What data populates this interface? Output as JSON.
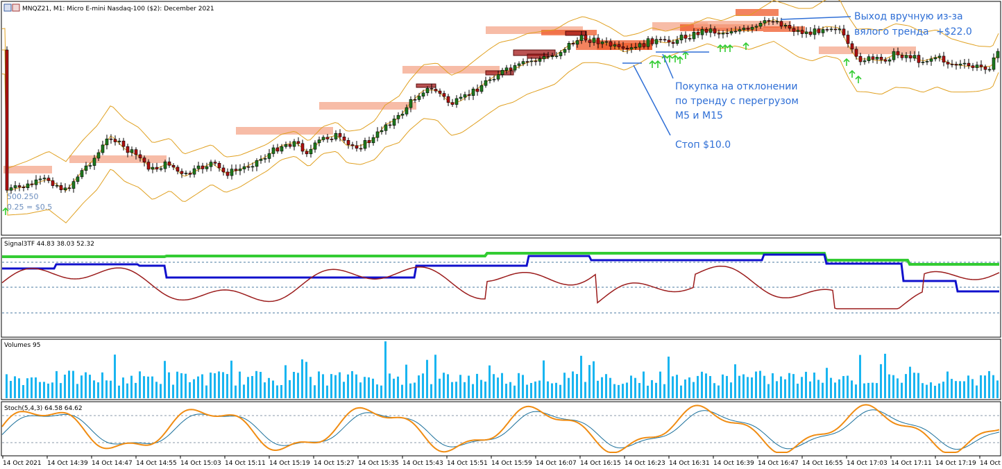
{
  "chart_data": {
    "type": "candlestick",
    "instrument": "MNQZ21",
    "timeframe": "M1",
    "header_title": "MNQZ21, M1:  Micro E-mini Nasdaq-100 ($2): December 2021",
    "annotations": {
      "exit_line1": "Выход вручную из-за",
      "exit_line2": "вялого тренда",
      "exit_profit": "+$22.0",
      "entry_line1": "Покупка на отклонении",
      "entry_line2": "по тренду с перегрузом",
      "entry_line3": "M5 и M15",
      "stop": "Стоп $10.0",
      "ghost_line1": "500.250",
      "ghost_line2": "0.25 = $0.5"
    },
    "signal_panel": {
      "title": "Signal3TF 44.83 38.03 52.32",
      "values": [
        44.83,
        38.03,
        52.32
      ],
      "green_series": [
        95,
        95,
        95,
        95,
        95,
        95,
        95,
        95,
        95,
        95,
        95,
        95,
        95,
        95,
        95,
        95,
        95,
        95,
        95,
        95,
        95,
        95,
        95,
        95,
        95,
        95,
        95,
        95,
        95,
        95,
        95,
        95,
        95,
        95,
        95,
        95,
        95,
        96,
        96,
        96,
        96,
        96,
        96,
        96,
        96,
        96,
        96,
        96,
        96,
        96,
        96,
        96,
        96,
        96,
        96,
        96,
        96,
        96,
        96,
        96,
        96,
        97,
        97,
        97,
        97,
        97,
        97,
        97,
        97,
        97,
        97,
        97,
        97,
        97,
        97,
        97,
        97,
        97,
        97,
        97,
        97,
        97,
        97,
        97,
        97,
        97,
        97,
        97,
        97,
        97,
        97,
        97,
        97,
        97,
        97,
        97,
        97,
        97,
        97,
        97,
        97,
        97,
        97,
        97,
        97,
        97,
        97,
        97,
        97,
        97,
        97,
        97,
        97,
        97,
        97,
        97,
        97,
        97,
        97,
        97,
        97,
        97,
        97,
        97,
        97,
        97,
        97,
        97,
        97,
        97,
        97,
        97,
        97,
        97,
        97,
        97,
        97,
        97,
        97,
        97,
        97,
        97,
        97,
        97,
        97,
        97,
        97,
        97,
        97,
        97,
        97,
        97,
        97,
        97,
        97,
        97,
        97,
        97,
        97,
        97,
        97,
        97,
        97,
        97,
        97,
        97,
        97,
        97,
        97,
        97,
        97,
        97,
        97,
        97,
        97,
        97,
        97,
        97,
        97,
        97,
        97,
        97,
        97,
        97,
        97,
        97,
        97,
        97,
        97,
        97,
        97,
        97,
        97,
        97,
        97,
        97,
        97,
        97,
        97,
        97,
        97,
        97,
        97,
        97,
        97,
        97,
        97,
        97,
        97,
        97,
        97,
        97,
        98,
        98,
        98,
        98,
        98,
        98,
        98,
        98,
        98,
        98,
        98,
        98,
        98,
        98,
        98,
        98,
        98,
        98,
        98,
        98,
        98,
        98,
        98,
        98,
        98,
        98,
        98,
        98,
        98,
        98,
        98,
        98,
        98,
        98,
        98,
        98,
        98,
        98,
        98,
        98,
        98,
        98,
        98,
        98,
        98,
        98,
        98,
        98,
        98,
        98,
        98,
        98,
        98,
        98,
        98,
        98,
        98,
        98,
        98,
        98,
        98,
        98,
        98,
        98,
        98,
        98,
        98,
        98,
        98,
        98,
        98,
        98,
        98,
        98,
        98,
        98,
        98,
        98,
        98,
        98,
        98,
        98,
        98,
        98,
        98,
        98,
        98,
        98,
        98,
        98,
        98,
        98,
        98,
        98,
        90,
        90,
        90,
        90,
        90,
        90,
        90,
        90,
        90,
        90,
        90,
        90,
        90,
        90,
        90,
        90,
        90,
        90,
        90,
        90,
        90,
        90,
        90,
        90,
        90,
        90,
        90,
        90,
        90,
        90,
        90,
        90,
        90,
        90,
        90,
        90,
        90,
        90,
        90,
        90,
        90,
        90,
        90,
        90,
        90,
        90,
        90,
        90,
        90,
        90,
        90,
        90,
        90,
        90,
        90,
        90,
        90,
        90,
        90,
        90,
        90,
        90,
        90,
        90,
        90,
        90,
        90,
        90,
        90,
        90,
        90,
        90,
        90,
        90,
        90,
        90,
        90,
        90,
        90,
        90,
        90,
        90,
        90,
        90,
        90,
        90,
        90,
        90,
        90,
        90,
        90,
        90,
        90,
        90,
        90,
        90,
        90,
        90,
        90,
        90,
        90,
        90,
        90,
        90,
        90,
        90,
        90,
        90,
        90,
        90,
        90,
        90,
        90,
        90,
        90,
        90
      ],
      "green_y": 52.32,
      "blue_y": 44.83,
      "red_y": 38.03
    },
    "volumes_panel": {
      "title": "Volumes 95",
      "value": 95
    },
    "stoch_panel": {
      "title": "Stoch(5,4,3) 64.58 64.62",
      "k": 64.58,
      "d": 64.62
    },
    "x_ticks": [
      "14 Oct 2021",
      "14 Oct 14:39",
      "14 Oct 14:47",
      "14 Oct 14:55",
      "14 Oct 15:03",
      "14 Oct 15:11",
      "14 Oct 15:19",
      "14 Oct 15:27",
      "14 Oct 15:35",
      "14 Oct 15:43",
      "14 Oct 15:51",
      "14 Oct 15:59",
      "14 Oct 16:07",
      "14 Oct 16:15",
      "14 Oct 16:23",
      "14 Oct 16:31",
      "14 Oct 16:39",
      "14 Oct 16:47",
      "14 Oct 16:55",
      "14 Oct 17:03",
      "14 Oct 17:11",
      "14 Oct 17:19",
      "14 Oct"
    ],
    "colors": {
      "bull": "#1e7a1e",
      "bear": "#b01010",
      "band": "#e0a020",
      "zone": "#f4a58a",
      "zone_strong": "#ef5a2a",
      "zone_dark": "#a31818",
      "green_line": "#33cc33",
      "blue_line": "#1010cc",
      "red_line": "#9b1c1c",
      "volume": "#19b5f0",
      "stoch_k": "#f08c12",
      "stoch_d": "#1a6f9a",
      "annotation": "#2f6fd6",
      "arrow": "#33cc33"
    }
  }
}
